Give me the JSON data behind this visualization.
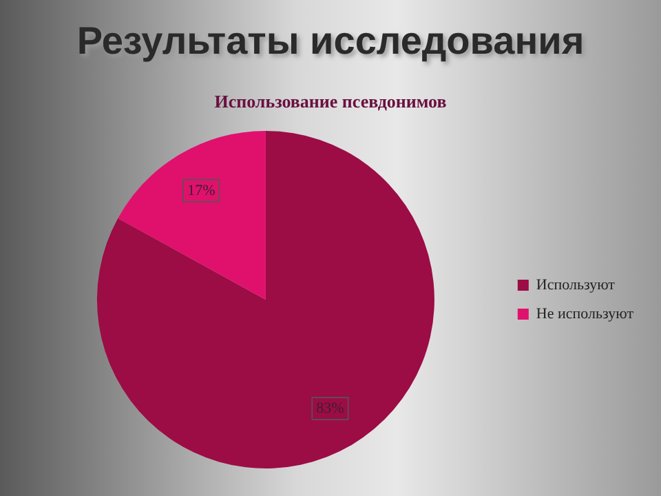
{
  "chart_data": {
    "type": "pie",
    "title": "Результаты исследования",
    "subtitle": "Использование псевдонимов",
    "categories": [
      "Используют",
      "Не используют"
    ],
    "values": [
      83,
      17
    ],
    "colors": [
      "#9c0c45",
      "#e0116c"
    ],
    "value_labels": [
      "83%",
      "17%"
    ],
    "legend": "right"
  }
}
